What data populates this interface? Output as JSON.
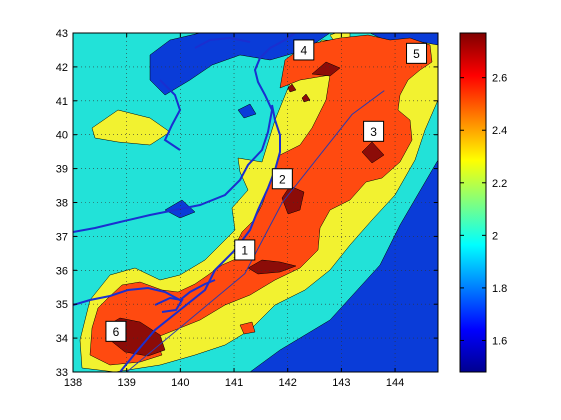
{
  "chart_data": {
    "type": "heatmap",
    "title": "",
    "xlabel": "",
    "ylabel": "",
    "xlim": [
      138,
      144.8
    ],
    "ylim": [
      33,
      43
    ],
    "xticks": [
      "138",
      "139",
      "140",
      "141",
      "142",
      "143",
      "144"
    ],
    "yticks": [
      "33",
      "34",
      "35",
      "36",
      "37",
      "38",
      "39",
      "40",
      "41",
      "42",
      "43"
    ],
    "grid": true,
    "colorbar": {
      "range": [
        1.48,
        2.77
      ],
      "ticks": [
        "1.6",
        "1.8",
        "2",
        "2.2",
        "2.4",
        "2.6"
      ],
      "colormap": "jet",
      "placement": "right"
    },
    "markers": [
      {
        "label": "1",
        "x": 141.2,
        "y": 36.6
      },
      {
        "label": "2",
        "x": 141.9,
        "y": 38.7
      },
      {
        "label": "3",
        "x": 143.6,
        "y": 40.1
      },
      {
        "label": "4",
        "x": 142.3,
        "y": 42.5
      },
      {
        "label": "5",
        "x": 144.4,
        "y": 42.4
      },
      {
        "label": "6",
        "x": 138.8,
        "y": 34.2
      }
    ],
    "trench_line": [
      [
        139.0,
        33.0
      ],
      [
        141.2,
        35.9
      ],
      [
        141.9,
        38.0
      ],
      [
        143.2,
        40.6
      ],
      [
        143.8,
        41.3
      ]
    ],
    "levels": [
      {
        "value": 1.6,
        "color": "#0a3cd8"
      },
      {
        "value": 2.0,
        "color": "#2ad8f0"
      },
      {
        "value": 2.2,
        "color": "#f2f230"
      },
      {
        "value": 2.4,
        "color": "#ff4a10"
      },
      {
        "value": 2.6,
        "color": "#8c0c08"
      }
    ],
    "background_color": "#22e2d8",
    "coastline_color": "#1a2fd0"
  }
}
